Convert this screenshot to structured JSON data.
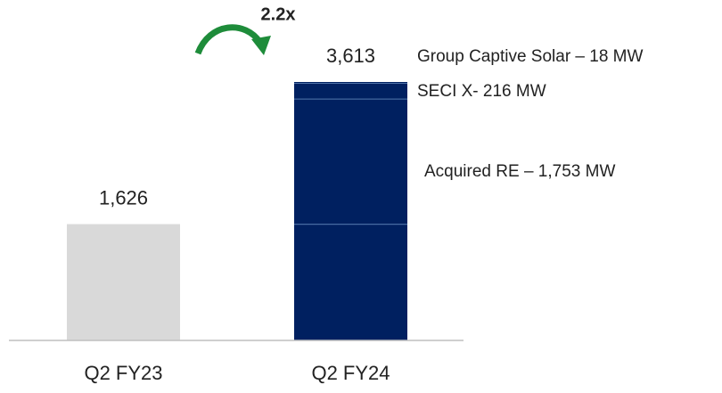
{
  "chart_data": {
    "type": "bar",
    "categories": [
      "Q2 FY23",
      "Q2 FY24"
    ],
    "values": [
      1626,
      3613
    ],
    "value_labels": [
      "1,626",
      "3,613"
    ],
    "colors": [
      "#d9d9d9",
      "#002060"
    ],
    "segments": [
      {
        "label": "Acquired RE – 1,753 MW",
        "value": 1753
      },
      {
        "label": "SECI X- 216 MW",
        "value": 216
      },
      {
        "label": "Group Captive Solar – 18 MW",
        "value": 18
      }
    ],
    "annotation": "2.2x",
    "annotation_color": "#1e8c3a"
  }
}
